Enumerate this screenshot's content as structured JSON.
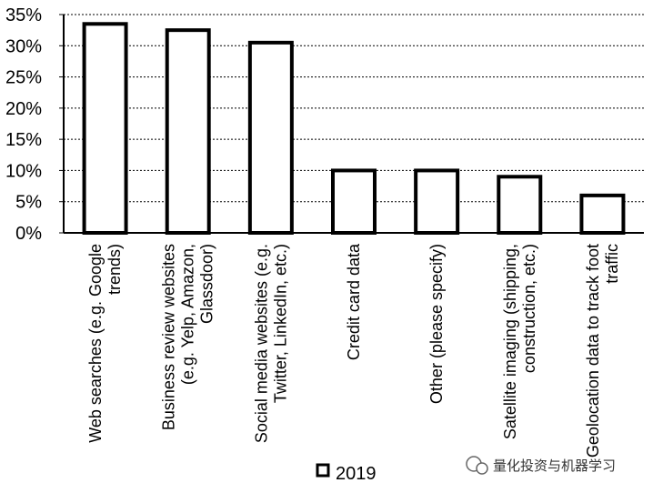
{
  "chart_data": {
    "type": "bar",
    "categories": [
      [
        "Web searches (e.g. Google",
        "trends)"
      ],
      [
        "Business review websites",
        "(e.g. Yelp, Amazon,",
        "Glassdoor)"
      ],
      [
        "Social media websites (e.g.",
        "Twitter, LinkedIn, etc.)"
      ],
      [
        "Credit card data"
      ],
      [
        "Other (please specify)"
      ],
      [
        "Satellite imaging (shipping,",
        "construction, etc.)"
      ],
      [
        "Geolocation data to track foot",
        "traffic"
      ]
    ],
    "series": [
      {
        "name": "2019",
        "values": [
          33.5,
          32.5,
          30.5,
          10,
          10,
          9,
          6
        ]
      }
    ],
    "ylim": [
      0,
      35
    ],
    "y_ticks": [
      "0%",
      "5%",
      "10%",
      "15%",
      "20%",
      "25%",
      "30%",
      "35%"
    ],
    "grid": true,
    "legend_position": "bottom",
    "bar_color": "#ffffff",
    "bar_edge_color": "#000000"
  },
  "watermark": {
    "text": "量化投资与机器学习",
    "icon": "wechat-icon"
  }
}
